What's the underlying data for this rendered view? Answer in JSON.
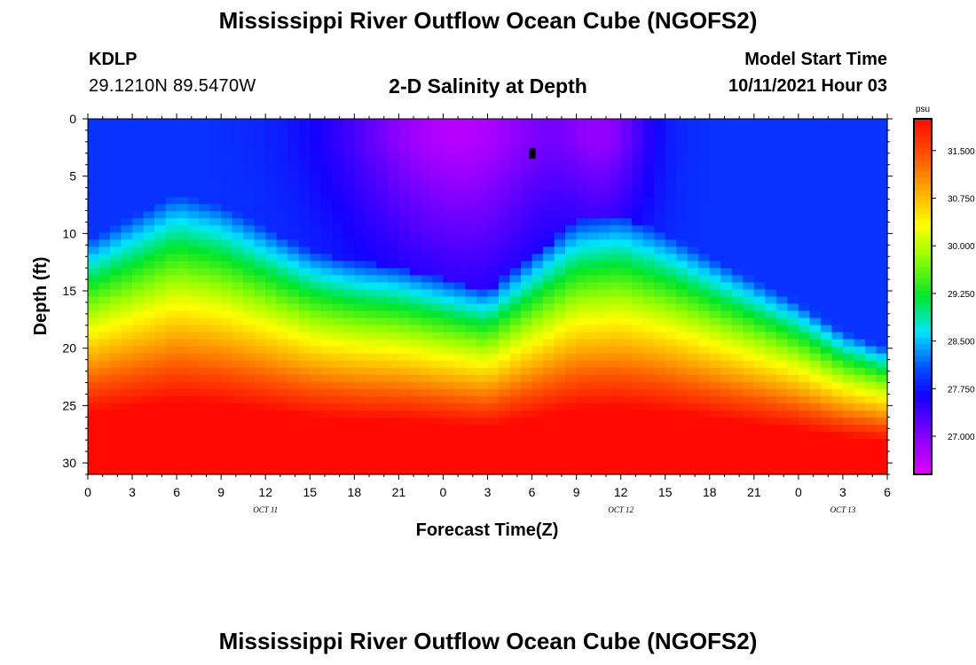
{
  "header": {
    "title": "Mississippi River Outflow Ocean Cube (NGOFS2)",
    "station": "KDLP",
    "coords": "29.1210N  89.5470W",
    "subtitle": "2-D Salinity at Depth",
    "start_label": "Model Start Time",
    "start_value": "10/11/2021 Hour 03"
  },
  "footer": {
    "title": "Mississippi River Outflow Ocean Cube (NGOFS2)"
  },
  "chart_data": {
    "type": "heatmap",
    "title": "2-D Salinity at Depth",
    "xlabel": "Forecast Time(Z)",
    "ylabel": "Depth (ft)",
    "units": "psu",
    "x_hours_range": [
      0,
      54
    ],
    "ylim": [
      0,
      31
    ],
    "y_inverted": true,
    "x_tick_labels": [
      "0",
      "3",
      "6",
      "9",
      "12",
      "15",
      "18",
      "21",
      "0",
      "3",
      "6",
      "9",
      "12",
      "15",
      "18",
      "21",
      "0",
      "3",
      "6"
    ],
    "y_ticks": [
      0,
      5,
      10,
      15,
      20,
      25,
      30
    ],
    "day_labels": [
      {
        "label": "OCT 11",
        "hour": 12
      },
      {
        "label": "OCT 12",
        "hour": 36
      },
      {
        "label": "OCT 13",
        "hour": 51
      }
    ],
    "colorbar": {
      "label": "psu",
      "min": 26.4,
      "max": 32.0,
      "ticks": [
        "27.000",
        "27.750",
        "28.500",
        "29.250",
        "30.000",
        "30.750",
        "31.500"
      ],
      "tick_values": [
        27.0,
        27.75,
        28.5,
        29.25,
        30.0,
        30.75,
        31.5
      ]
    },
    "fresh_layer_depth_by_hour": {
      "hours": [
        0,
        3,
        6,
        9,
        12,
        15,
        18,
        21,
        24,
        27,
        30,
        33,
        36,
        39,
        42,
        45,
        48,
        51,
        54
      ],
      "depth_ft": [
        14.5,
        12.5,
        10.5,
        11.5,
        13.5,
        15.5,
        16.5,
        17.0,
        18.0,
        19.0,
        16.0,
        13.0,
        12.5,
        14.0,
        16.0,
        18.0,
        20.0,
        22.5,
        24.0
      ]
    },
    "marker": {
      "hour": 30,
      "depth_ft": 3
    }
  }
}
